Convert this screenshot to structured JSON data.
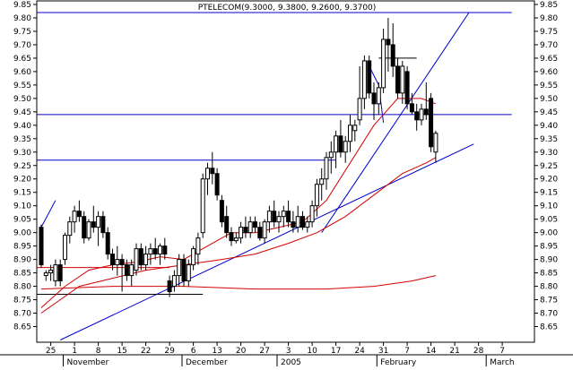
{
  "chart_data": {
    "type": "candlestick",
    "title": "PTELECOM(9.3000, 9.3800, 9.2600, 9.3700)",
    "ylim": [
      8.6,
      9.85
    ],
    "yticks": [
      8.65,
      8.7,
      8.75,
      8.8,
      8.85,
      8.9,
      8.95,
      9.0,
      9.05,
      9.1,
      9.15,
      9.2,
      9.25,
      9.3,
      9.35,
      9.4,
      9.45,
      9.5,
      9.55,
      9.6,
      9.65,
      9.7,
      9.75,
      9.8,
      9.85
    ],
    "ytick_labels": [
      "8.65",
      "8.70",
      "8.75",
      "8.80",
      "8.85",
      "8.90",
      "8.95",
      "9.00",
      "9.05",
      "9.10",
      "9.15",
      "9.20",
      "9.25",
      "9.30",
      "9.35",
      "9.40",
      "9.45",
      "9.50",
      "9.55",
      "9.60",
      "9.65",
      "9.70",
      "9.75",
      "9.80",
      "9.85"
    ],
    "x_day_labels": [
      {
        "i": 2,
        "label": "25"
      },
      {
        "i": 7,
        "label": "1"
      },
      {
        "i": 12,
        "label": "8"
      },
      {
        "i": 17,
        "label": "15"
      },
      {
        "i": 22,
        "label": "22"
      },
      {
        "i": 27,
        "label": "29"
      },
      {
        "i": 32,
        "label": "6"
      },
      {
        "i": 37,
        "label": "13"
      },
      {
        "i": 42,
        "label": "20"
      },
      {
        "i": 47,
        "label": "27"
      },
      {
        "i": 52,
        "label": "3"
      },
      {
        "i": 57,
        "label": "10"
      },
      {
        "i": 62,
        "label": "17"
      },
      {
        "i": 67,
        "label": "24"
      },
      {
        "i": 72,
        "label": "31"
      },
      {
        "i": 77,
        "label": "7"
      },
      {
        "i": 82,
        "label": "14"
      },
      {
        "i": 87,
        "label": "21"
      },
      {
        "i": 92,
        "label": "28"
      },
      {
        "i": 97,
        "label": "7"
      }
    ],
    "x_month_labels": [
      {
        "i": 5,
        "label": "November"
      },
      {
        "i": 30,
        "label": "December"
      },
      {
        "i": 50,
        "label": "2005"
      },
      {
        "i": 71,
        "label": "February"
      },
      {
        "i": 94,
        "label": "March"
      }
    ],
    "candles": [
      {
        "i": 0,
        "o": 9.02,
        "h": 9.03,
        "l": 8.87,
        "c": 8.88
      },
      {
        "i": 1,
        "o": 8.84,
        "h": 8.86,
        "l": 8.82,
        "c": 8.85
      },
      {
        "i": 2,
        "o": 8.85,
        "h": 8.88,
        "l": 8.82,
        "c": 8.86
      },
      {
        "i": 3,
        "o": 8.82,
        "h": 8.9,
        "l": 8.8,
        "c": 8.88
      },
      {
        "i": 4,
        "o": 8.88,
        "h": 8.9,
        "l": 8.8,
        "c": 8.82
      },
      {
        "i": 5,
        "o": 8.9,
        "h": 9.0,
        "l": 8.88,
        "c": 8.99
      },
      {
        "i": 6,
        "o": 8.99,
        "h": 9.06,
        "l": 8.96,
        "c": 9.04
      },
      {
        "i": 7,
        "o": 9.04,
        "h": 9.1,
        "l": 9.0,
        "c": 9.08
      },
      {
        "i": 8,
        "o": 9.08,
        "h": 9.12,
        "l": 9.04,
        "c": 9.06
      },
      {
        "i": 9,
        "o": 9.06,
        "h": 9.08,
        "l": 8.96,
        "c": 8.98
      },
      {
        "i": 10,
        "o": 8.98,
        "h": 9.05,
        "l": 8.97,
        "c": 9.04
      },
      {
        "i": 11,
        "o": 9.04,
        "h": 9.1,
        "l": 9.0,
        "c": 9.02
      },
      {
        "i": 12,
        "o": 9.02,
        "h": 9.08,
        "l": 8.95,
        "c": 9.06
      },
      {
        "i": 13,
        "o": 9.06,
        "h": 9.08,
        "l": 8.98,
        "c": 9.0
      },
      {
        "i": 14,
        "o": 9.0,
        "h": 9.02,
        "l": 8.9,
        "c": 8.92
      },
      {
        "i": 15,
        "o": 8.92,
        "h": 8.94,
        "l": 8.86,
        "c": 8.88
      },
      {
        "i": 16,
        "o": 8.88,
        "h": 8.95,
        "l": 8.84,
        "c": 8.9
      },
      {
        "i": 17,
        "o": 8.9,
        "h": 8.92,
        "l": 8.78,
        "c": 8.88
      },
      {
        "i": 18,
        "o": 8.88,
        "h": 8.9,
        "l": 8.82,
        "c": 8.84
      },
      {
        "i": 19,
        "o": 8.84,
        "h": 8.9,
        "l": 8.8,
        "c": 8.88
      },
      {
        "i": 20,
        "o": 8.86,
        "h": 8.96,
        "l": 8.84,
        "c": 8.94
      },
      {
        "i": 21,
        "o": 8.94,
        "h": 8.96,
        "l": 8.86,
        "c": 8.88
      },
      {
        "i": 22,
        "o": 8.88,
        "h": 8.95,
        "l": 8.86,
        "c": 8.92
      },
      {
        "i": 23,
        "o": 8.92,
        "h": 8.96,
        "l": 8.88,
        "c": 8.94
      },
      {
        "i": 24,
        "o": 8.94,
        "h": 8.98,
        "l": 8.9,
        "c": 8.92
      },
      {
        "i": 25,
        "o": 8.92,
        "h": 8.96,
        "l": 8.88,
        "c": 8.95
      },
      {
        "i": 26,
        "o": 8.95,
        "h": 8.98,
        "l": 8.9,
        "c": 8.92
      },
      {
        "i": 27,
        "o": 8.82,
        "h": 8.84,
        "l": 8.76,
        "c": 8.78
      },
      {
        "i": 28,
        "o": 8.8,
        "h": 8.86,
        "l": 8.78,
        "c": 8.84
      },
      {
        "i": 29,
        "o": 8.84,
        "h": 8.92,
        "l": 8.8,
        "c": 8.9
      },
      {
        "i": 30,
        "o": 8.9,
        "h": 8.92,
        "l": 8.8,
        "c": 8.82
      },
      {
        "i": 31,
        "o": 8.82,
        "h": 8.9,
        "l": 8.8,
        "c": 8.88
      },
      {
        "i": 32,
        "o": 8.88,
        "h": 8.95,
        "l": 8.86,
        "c": 8.94
      },
      {
        "i": 33,
        "o": 8.92,
        "h": 9.0,
        "l": 8.88,
        "c": 8.98
      },
      {
        "i": 34,
        "o": 9.0,
        "h": 9.22,
        "l": 8.98,
        "c": 9.2
      },
      {
        "i": 35,
        "o": 9.2,
        "h": 9.26,
        "l": 9.14,
        "c": 9.24
      },
      {
        "i": 36,
        "o": 9.24,
        "h": 9.3,
        "l": 9.18,
        "c": 9.22
      },
      {
        "i": 37,
        "o": 9.22,
        "h": 9.24,
        "l": 9.12,
        "c": 9.14
      },
      {
        "i": 38,
        "o": 9.12,
        "h": 9.14,
        "l": 9.02,
        "c": 9.04
      },
      {
        "i": 39,
        "o": 9.06,
        "h": 9.1,
        "l": 8.98,
        "c": 9.0
      },
      {
        "i": 40,
        "o": 9.0,
        "h": 9.02,
        "l": 8.95,
        "c": 8.97
      },
      {
        "i": 41,
        "o": 8.97,
        "h": 9.0,
        "l": 8.96,
        "c": 8.98
      },
      {
        "i": 42,
        "o": 8.98,
        "h": 9.04,
        "l": 8.96,
        "c": 9.02
      },
      {
        "i": 43,
        "o": 9.02,
        "h": 9.06,
        "l": 8.98,
        "c": 9.0
      },
      {
        "i": 44,
        "o": 9.0,
        "h": 9.06,
        "l": 8.98,
        "c": 9.04
      },
      {
        "i": 45,
        "o": 9.04,
        "h": 9.06,
        "l": 9.0,
        "c": 9.02
      },
      {
        "i": 46,
        "o": 9.02,
        "h": 9.04,
        "l": 8.97,
        "c": 8.98
      },
      {
        "i": 47,
        "o": 8.98,
        "h": 9.05,
        "l": 8.96,
        "c": 9.04
      },
      {
        "i": 48,
        "o": 9.04,
        "h": 9.1,
        "l": 9.0,
        "c": 9.08
      },
      {
        "i": 49,
        "o": 9.08,
        "h": 9.12,
        "l": 9.02,
        "c": 9.04
      },
      {
        "i": 50,
        "o": 9.04,
        "h": 9.08,
        "l": 9.0,
        "c": 9.06
      },
      {
        "i": 51,
        "o": 9.06,
        "h": 9.1,
        "l": 9.02,
        "c": 9.08
      },
      {
        "i": 52,
        "o": 9.08,
        "h": 9.12,
        "l": 9.02,
        "c": 9.04
      },
      {
        "i": 53,
        "o": 9.04,
        "h": 9.08,
        "l": 9.0,
        "c": 9.02
      },
      {
        "i": 54,
        "o": 9.02,
        "h": 9.1,
        "l": 9.0,
        "c": 9.06
      },
      {
        "i": 55,
        "o": 9.06,
        "h": 9.08,
        "l": 9.01,
        "c": 9.02
      },
      {
        "i": 56,
        "o": 9.02,
        "h": 9.06,
        "l": 9.0,
        "c": 9.04
      },
      {
        "i": 57,
        "o": 9.04,
        "h": 9.12,
        "l": 9.02,
        "c": 9.1
      },
      {
        "i": 58,
        "o": 9.1,
        "h": 9.2,
        "l": 9.06,
        "c": 9.18
      },
      {
        "i": 59,
        "o": 9.18,
        "h": 9.24,
        "l": 9.12,
        "c": 9.2
      },
      {
        "i": 60,
        "o": 9.2,
        "h": 9.3,
        "l": 9.16,
        "c": 9.28
      },
      {
        "i": 61,
        "o": 9.28,
        "h": 9.34,
        "l": 9.22,
        "c": 9.3
      },
      {
        "i": 62,
        "o": 9.3,
        "h": 9.38,
        "l": 9.24,
        "c": 9.36
      },
      {
        "i": 63,
        "o": 9.36,
        "h": 9.42,
        "l": 9.28,
        "c": 9.3
      },
      {
        "i": 64,
        "o": 9.3,
        "h": 9.36,
        "l": 9.26,
        "c": 9.34
      },
      {
        "i": 65,
        "o": 9.34,
        "h": 9.44,
        "l": 9.3,
        "c": 9.4
      },
      {
        "i": 66,
        "o": 9.38,
        "h": 9.42,
        "l": 9.34,
        "c": 9.4
      },
      {
        "i": 67,
        "o": 9.42,
        "h": 9.62,
        "l": 9.4,
        "c": 9.5
      },
      {
        "i": 68,
        "o": 9.5,
        "h": 9.66,
        "l": 9.46,
        "c": 9.64
      },
      {
        "i": 69,
        "o": 9.64,
        "h": 9.66,
        "l": 9.5,
        "c": 9.52
      },
      {
        "i": 70,
        "o": 9.52,
        "h": 9.56,
        "l": 9.42,
        "c": 9.48
      },
      {
        "i": 71,
        "o": 9.48,
        "h": 9.56,
        "l": 9.44,
        "c": 9.54
      },
      {
        "i": 72,
        "o": 9.54,
        "h": 9.76,
        "l": 9.52,
        "c": 9.72
      },
      {
        "i": 73,
        "o": 9.72,
        "h": 9.8,
        "l": 9.6,
        "c": 9.7
      },
      {
        "i": 74,
        "o": 9.7,
        "h": 9.78,
        "l": 9.58,
        "c": 9.62
      },
      {
        "i": 75,
        "o": 9.62,
        "h": 9.65,
        "l": 9.5,
        "c": 9.52
      },
      {
        "i": 76,
        "o": 9.52,
        "h": 9.64,
        "l": 9.48,
        "c": 9.62
      },
      {
        "i": 77,
        "o": 9.6,
        "h": 9.62,
        "l": 9.46,
        "c": 9.48
      },
      {
        "i": 78,
        "o": 9.48,
        "h": 9.52,
        "l": 9.44,
        "c": 9.45
      },
      {
        "i": 79,
        "o": 9.45,
        "h": 9.48,
        "l": 9.38,
        "c": 9.42
      },
      {
        "i": 80,
        "o": 9.42,
        "h": 9.48,
        "l": 9.4,
        "c": 9.46
      },
      {
        "i": 81,
        "o": 9.46,
        "h": 9.56,
        "l": 9.42,
        "c": 9.44
      },
      {
        "i": 82,
        "o": 9.5,
        "h": 9.52,
        "l": 9.3,
        "c": 9.32
      },
      {
        "i": 83,
        "o": 9.3,
        "h": 9.38,
        "l": 9.26,
        "c": 9.37
      }
    ],
    "moving_averages": [
      {
        "name": "MA short",
        "color": "#d40000",
        "points": [
          [
            0,
            8.72
          ],
          [
            5,
            8.8
          ],
          [
            10,
            8.86
          ],
          [
            15,
            8.88
          ],
          [
            20,
            8.89
          ],
          [
            25,
            8.91
          ],
          [
            30,
            8.9
          ],
          [
            35,
            8.95
          ],
          [
            40,
            9.0
          ],
          [
            45,
            9.0
          ],
          [
            50,
            9.02
          ],
          [
            55,
            9.04
          ],
          [
            60,
            9.12
          ],
          [
            65,
            9.26
          ],
          [
            70,
            9.4
          ],
          [
            75,
            9.5
          ],
          [
            80,
            9.5
          ],
          [
            83,
            9.48
          ]
        ]
      },
      {
        "name": "MA medium",
        "color": "#d40000",
        "points": [
          [
            0,
            8.7
          ],
          [
            8,
            8.8
          ],
          [
            15,
            8.83
          ],
          [
            22,
            8.86
          ],
          [
            30,
            8.88
          ],
          [
            38,
            8.9
          ],
          [
            45,
            8.92
          ],
          [
            52,
            8.96
          ],
          [
            58,
            9.0
          ],
          [
            64,
            9.06
          ],
          [
            70,
            9.14
          ],
          [
            76,
            9.22
          ],
          [
            81,
            9.26
          ],
          [
            83,
            9.28
          ]
        ]
      },
      {
        "name": "MA long",
        "color": "#d40000",
        "points": [
          [
            0,
            8.79
          ],
          [
            15,
            8.8
          ],
          [
            30,
            8.8
          ],
          [
            45,
            8.79
          ],
          [
            60,
            8.79
          ],
          [
            70,
            8.8
          ],
          [
            78,
            8.82
          ],
          [
            83,
            8.84
          ]
        ]
      }
    ],
    "trendlines": [
      {
        "color": "#0000cc",
        "from": [
          0,
          9.02
        ],
        "to": [
          3,
          9.12
        ]
      },
      {
        "color": "#0000cc",
        "from": [
          4,
          8.6
        ],
        "to": [
          91,
          9.33
        ]
      },
      {
        "color": "#0000cc",
        "from": [
          59,
          9.0
        ],
        "to": [
          90,
          9.82
        ]
      },
      {
        "color": "#0000cc",
        "from": [
          -1,
          9.82
        ],
        "to": [
          99,
          9.82
        ]
      },
      {
        "color": "#0000cc",
        "from": [
          -1,
          9.44
        ],
        "to": [
          99,
          9.44
        ]
      },
      {
        "color": "#0000cc",
        "from": [
          -1,
          9.27
        ],
        "to": [
          62,
          9.27
        ]
      },
      {
        "color": "#d40000",
        "from": [
          -1,
          8.87
        ],
        "to": [
          27,
          8.87
        ]
      },
      {
        "color": "#000000",
        "from": [
          -1,
          8.77
        ],
        "to": [
          34,
          8.77
        ]
      },
      {
        "color": "#000000",
        "from": [
          71,
          9.65
        ],
        "to": [
          79,
          9.65
        ]
      },
      {
        "color": "#0000cc",
        "from": [
          69,
          9.62
        ],
        "to": [
          71,
          9.55
        ]
      },
      {
        "color": "#0000cc",
        "from": [
          71,
          9.55
        ],
        "to": [
          72,
          9.41
        ]
      }
    ],
    "grid": false,
    "legend": "none"
  }
}
